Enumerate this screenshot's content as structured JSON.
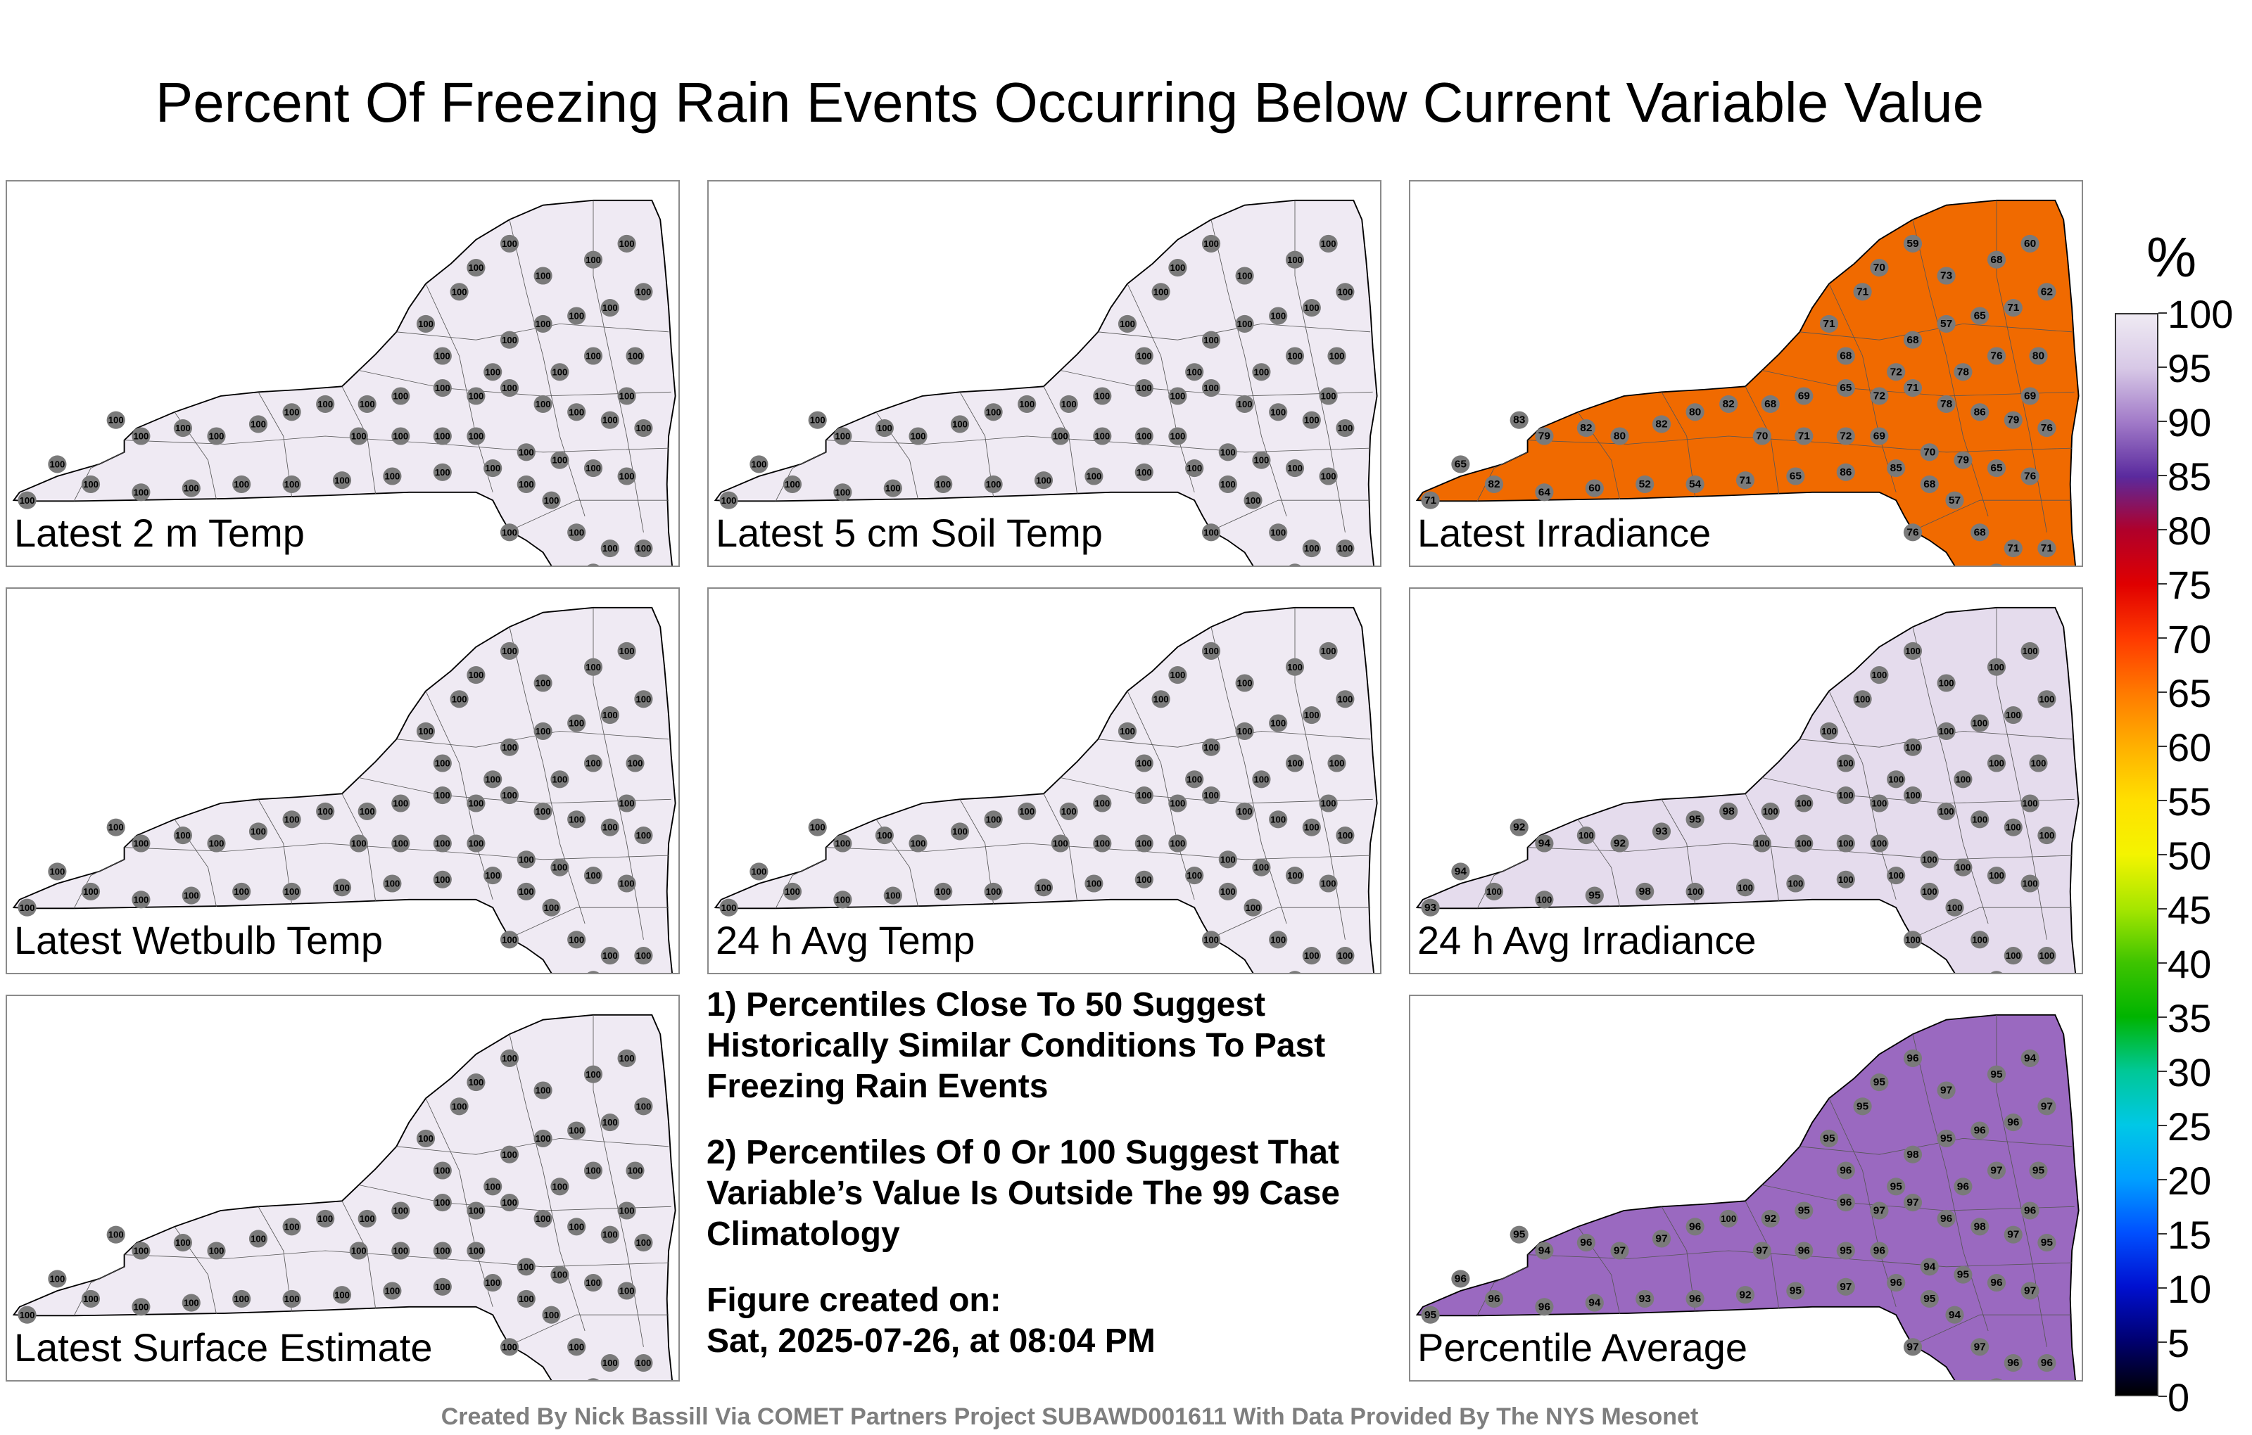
{
  "title": "Percent Of Freezing Rain Events Occurring Below Current Variable Value",
  "panels": [
    {
      "label": "Latest 2 m Temp",
      "fill": "#efeaf3",
      "values": [
        100,
        100,
        100,
        100,
        100,
        100,
        100,
        100,
        100,
        100,
        100,
        100,
        100,
        100,
        100,
        100,
        100,
        100,
        100,
        100,
        100,
        100,
        100,
        100,
        100,
        100,
        100,
        100,
        100,
        100,
        100,
        100,
        100,
        100,
        100,
        100,
        100,
        100,
        100,
        100,
        100,
        100,
        100,
        100,
        100,
        100,
        100,
        100,
        100,
        100,
        100,
        100,
        100,
        100,
        100,
        100,
        100,
        100,
        100,
        100
      ]
    },
    {
      "label": "Latest 5 cm Soil Temp",
      "fill": "#efeaf3",
      "values": [
        100,
        100,
        100,
        100,
        100,
        100,
        100,
        100,
        100,
        100,
        100,
        100,
        100,
        100,
        100,
        100,
        100,
        100,
        100,
        100,
        100,
        100,
        100,
        100,
        100,
        100,
        100,
        100,
        100,
        100,
        100,
        100,
        100,
        100,
        100,
        100,
        100,
        100,
        100,
        100,
        100,
        100,
        100,
        100,
        100,
        100,
        100,
        100,
        100,
        100,
        100,
        100,
        100,
        100,
        100,
        100,
        100,
        100,
        100,
        100
      ]
    },
    {
      "label": "Latest Irradiance",
      "fill": "#f06a00",
      "values": [
        71,
        65,
        83,
        79,
        82,
        80,
        82,
        80,
        82,
        68,
        69,
        65,
        72,
        71,
        78,
        86,
        79,
        76,
        82,
        64,
        60,
        52,
        54,
        71,
        65,
        86,
        85,
        70,
        79,
        65,
        76,
        69,
        72,
        71,
        70,
        68,
        57,
        65,
        71,
        62,
        73,
        68,
        60,
        59,
        70,
        71,
        68,
        76,
        80,
        78,
        68,
        71,
        69,
        57,
        68,
        71,
        76,
        71,
        69,
        72
      ]
    },
    {
      "label": "Latest Wetbulb Temp",
      "fill": "#efeaf3",
      "values": [
        100,
        100,
        100,
        100,
        100,
        100,
        100,
        100,
        100,
        100,
        100,
        100,
        100,
        100,
        100,
        100,
        100,
        100,
        100,
        100,
        100,
        100,
        100,
        100,
        100,
        100,
        100,
        100,
        100,
        100,
        100,
        100,
        100,
        100,
        100,
        100,
        100,
        100,
        100,
        100,
        100,
        100,
        100,
        100,
        100,
        100,
        100,
        100,
        100,
        100,
        100,
        100,
        100,
        100,
        100,
        100,
        100,
        100,
        100,
        100
      ]
    },
    {
      "label": "24 h Avg Temp",
      "fill": "#efeaf3",
      "values": [
        100,
        100,
        100,
        100,
        100,
        100,
        100,
        100,
        100,
        100,
        100,
        100,
        100,
        100,
        100,
        100,
        100,
        100,
        100,
        100,
        100,
        100,
        100,
        100,
        100,
        100,
        100,
        100,
        100,
        100,
        100,
        100,
        100,
        100,
        100,
        100,
        100,
        100,
        100,
        100,
        100,
        100,
        100,
        100,
        100,
        100,
        100,
        100,
        100,
        100,
        100,
        100,
        100,
        100,
        100,
        100,
        100,
        100,
        100,
        100
      ]
    },
    {
      "label": "24 h Avg Irradiance",
      "fill": "#e5dced",
      "values": [
        93,
        94,
        92,
        94,
        100,
        92,
        93,
        95,
        98,
        100,
        100,
        100,
        100,
        100,
        100,
        100,
        100,
        100,
        100,
        100,
        95,
        98,
        100,
        100,
        100,
        100,
        100,
        100,
        100,
        100,
        100,
        100,
        100,
        100,
        100,
        100,
        100,
        100,
        100,
        100,
        100,
        100,
        100,
        100,
        100,
        100,
        100,
        100,
        100,
        100,
        100,
        100,
        100,
        100,
        100,
        100,
        100,
        100,
        100,
        100
      ]
    },
    {
      "label": "Latest Surface Estimate",
      "fill": "#efeaf3",
      "values": [
        100,
        100,
        100,
        100,
        100,
        100,
        100,
        100,
        100,
        100,
        100,
        100,
        100,
        100,
        100,
        100,
        100,
        100,
        100,
        100,
        100,
        100,
        100,
        100,
        100,
        100,
        100,
        100,
        100,
        100,
        100,
        100,
        100,
        100,
        100,
        100,
        100,
        100,
        100,
        100,
        100,
        100,
        100,
        100,
        100,
        100,
        100,
        100,
        100,
        100,
        100,
        100,
        100,
        100,
        100,
        100,
        100,
        100,
        100,
        100
      ]
    },
    {
      "label": "Percentile Average",
      "fill": "#9a69c0",
      "values": [
        95,
        96,
        95,
        94,
        96,
        97,
        97,
        96,
        100,
        92,
        95,
        96,
        97,
        97,
        96,
        98,
        97,
        95,
        96,
        96,
        94,
        93,
        96,
        92,
        95,
        97,
        96,
        94,
        95,
        96,
        97,
        96,
        95,
        96,
        97,
        98,
        95,
        96,
        96,
        97,
        97,
        95,
        94,
        96,
        95,
        95,
        96,
        97,
        95,
        96,
        97,
        96,
        95,
        94,
        95,
        96,
        97,
        95,
        96,
        95
      ]
    }
  ],
  "notes": {
    "n1": "1) Percentiles Close To 50 Suggest Historically Similar Conditions To Past Freezing Rain Events",
    "n2": "2) Percentiles Of 0 Or 100 Suggest That Variable’s Value Is Outside The 99 Case Climatology",
    "created_label": "Figure created on:",
    "created_value": "Sat, 2025-07-26, at 08:04 PM"
  },
  "credit": "Created By Nick Bassill Via COMET Partners Project SUBAWD001611 With Data Provided By The NYS Mesonet",
  "colorbar": {
    "unit": "%",
    "ticks": [
      "100",
      "95",
      "90",
      "85",
      "80",
      "75",
      "70",
      "65",
      "60",
      "55",
      "50",
      "45",
      "40",
      "35",
      "30",
      "25",
      "20",
      "15",
      "10",
      "5",
      "0"
    ],
    "stops": [
      "#efeaf3",
      "#d7c8e6",
      "#a17ac8",
      "#5a2a9e",
      "#b0002a",
      "#e00000",
      "#ff3a00",
      "#ff7a00",
      "#ffb000",
      "#ffe000",
      "#f4f400",
      "#a6e600",
      "#3ec400",
      "#00b400",
      "#00c896",
      "#00c8e6",
      "#00a0ff",
      "#0050ff",
      "#0010d0",
      "#000070",
      "#000000"
    ]
  },
  "chart_data": {
    "type": "heatmap",
    "title": "Percent Of Freezing Rain Events Occurring Below Current Variable Value",
    "colorbar_unit": "%",
    "colorbar_range": [
      0,
      100
    ],
    "panels": [
      "Latest 2 m Temp",
      "Latest 5 cm Soil Temp",
      "Latest Irradiance",
      "Latest Wetbulb Temp",
      "24 h Avg Temp",
      "24 h Avg Irradiance",
      "Latest Surface Estimate",
      "Percentile Average"
    ]
  }
}
